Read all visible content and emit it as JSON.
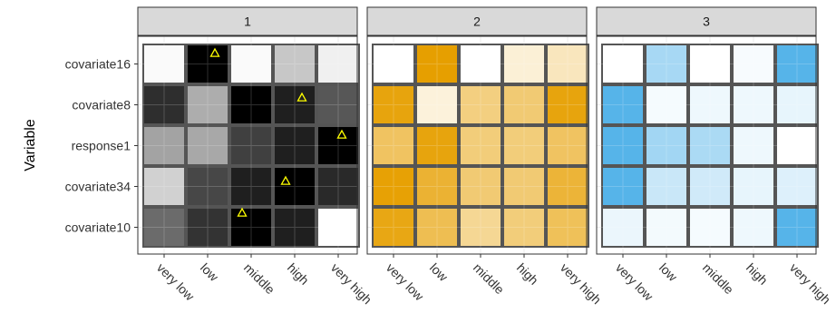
{
  "chart_data": {
    "type": "heatmap",
    "ylabel": "Variable",
    "xlabel": "",
    "x_categories": [
      "very low",
      "low",
      "middle",
      "high",
      "very high"
    ],
    "y_categories": [
      "covariate16",
      "covariate8",
      "response1",
      "covariate34",
      "covariate10"
    ],
    "grid": true,
    "legend": "none",
    "marker_color": "#ffff00",
    "panels": [
      {
        "strip": "1",
        "palette": "grey",
        "color_low": "#ffffff",
        "color_high": "#000000",
        "values": [
          [
            0.02,
            1.0,
            0.02,
            0.22,
            0.06
          ],
          [
            0.82,
            0.32,
            1.0,
            0.88,
            0.66
          ],
          [
            0.36,
            0.34,
            0.75,
            0.88,
            1.0
          ],
          [
            0.18,
            0.72,
            0.88,
            1.0,
            0.84
          ],
          [
            0.58,
            0.8,
            1.0,
            0.88,
            0.0
          ]
        ],
        "markers": [
          {
            "row": "covariate16",
            "col": "low"
          },
          {
            "row": "covariate8",
            "col": "high"
          },
          {
            "row": "response1",
            "col": "very high"
          },
          {
            "row": "covariate34",
            "col": "high"
          },
          {
            "row": "covariate10",
            "col": "middle"
          }
        ]
      },
      {
        "strip": "2",
        "palette": "orange",
        "color_low": "#ffffff",
        "color_high": "#e69f00",
        "values": [
          [
            0.0,
            1.0,
            0.0,
            0.16,
            0.26
          ],
          [
            0.95,
            0.14,
            0.5,
            0.55,
            0.95
          ],
          [
            0.62,
            0.95,
            0.52,
            0.52,
            0.62
          ],
          [
            0.98,
            0.8,
            0.55,
            0.55,
            0.78
          ],
          [
            0.92,
            0.68,
            0.42,
            0.52,
            0.65
          ]
        ]
      },
      {
        "strip": "3",
        "palette": "blue",
        "color_low": "#ffffff",
        "color_high": "#56b4e9",
        "values": [
          [
            0.0,
            0.52,
            0.0,
            0.05,
            1.0
          ],
          [
            1.0,
            0.06,
            0.1,
            0.1,
            0.14
          ],
          [
            1.0,
            0.55,
            0.5,
            0.1,
            0.0
          ],
          [
            1.0,
            0.32,
            0.28,
            0.14,
            0.2
          ],
          [
            0.12,
            0.07,
            0.06,
            0.1,
            1.0
          ]
        ]
      }
    ]
  }
}
